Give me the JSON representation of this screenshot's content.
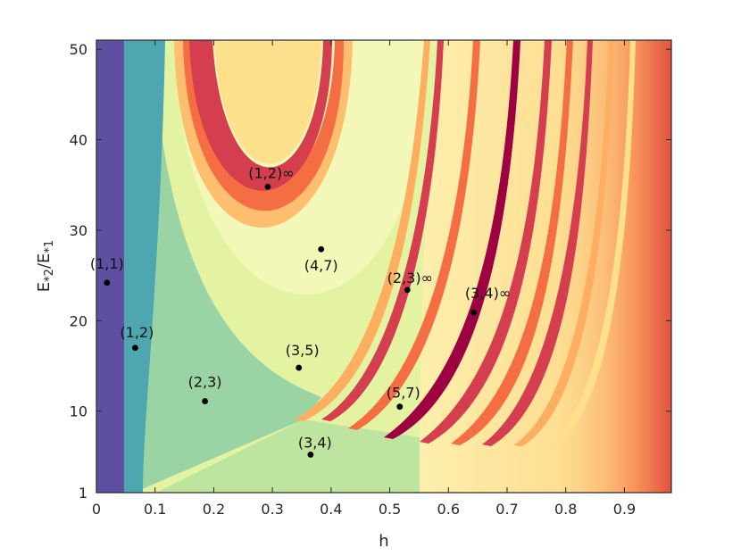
{
  "chart_data": {
    "type": "heatmap",
    "xlabel": "h",
    "ylabel_main": "E",
    "ylabel_sub1": "*2",
    "ylabel_mid": "/E",
    "ylabel_sub2": "*1",
    "xlim": [
      0,
      0.98
    ],
    "ylim": [
      1,
      51
    ],
    "x_ticks": [
      0,
      0.1,
      0.2,
      0.3,
      0.4,
      0.5,
      0.6,
      0.7,
      0.8,
      0.9
    ],
    "x_tick_labels": [
      "0",
      "0.1",
      "0.2",
      "0.3",
      "0.4",
      "0.5",
      "0.6",
      "0.7",
      "0.8",
      "0.9"
    ],
    "y_ticks": [
      1,
      10,
      20,
      30,
      40,
      50
    ],
    "y_tick_labels": [
      "1",
      "10",
      "20",
      "30",
      "40",
      "50"
    ],
    "colormap": "spectral",
    "annotations": [
      {
        "label": "(1,1)",
        "x": 0.018,
        "y": 24.2
      },
      {
        "label": "(1,2)",
        "x": 0.066,
        "y": 17.0
      },
      {
        "label": "(2,3)",
        "x": 0.185,
        "y": 11.1
      },
      {
        "label": "(1,2)∞",
        "x": 0.292,
        "y": 34.8
      },
      {
        "label": "(4,7)",
        "x": 0.383,
        "y": 27.9
      },
      {
        "label": "(3,5)",
        "x": 0.345,
        "y": 14.8
      },
      {
        "label": "(3,4)",
        "x": 0.365,
        "y": 5.2
      },
      {
        "label": "(2,3)∞",
        "x": 0.53,
        "y": 23.4
      },
      {
        "label": "(5,7)",
        "x": 0.517,
        "y": 10.5
      },
      {
        "label": "(3,4)∞",
        "x": 0.643,
        "y": 20.9
      }
    ]
  }
}
